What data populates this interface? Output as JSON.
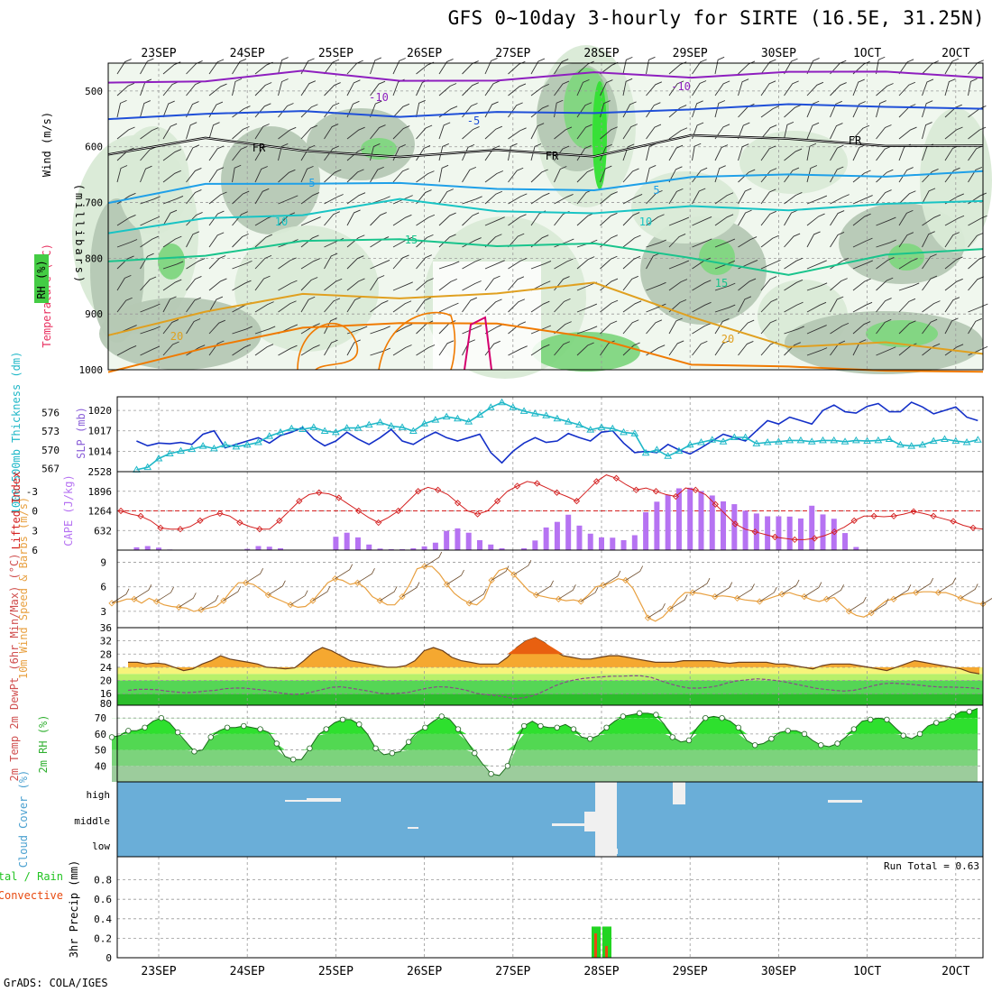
{
  "header": {
    "title": "GFS 0~10day 3-hourly for SIRTE (16.5E, 31.25N)"
  },
  "footer": {
    "credit": "GrADS: COLA/IGES"
  },
  "colors": {
    "rh_shade": [
      "#f0f7ee",
      "#d9ead6",
      "#b5c8b4",
      "#7fd67f",
      "#33e033"
    ],
    "temp": {
      "m10": "#8e1fbf",
      "m5": "#1f4fd8",
      "frz": "#000000",
      "p5": "#1fa0e8",
      "p10": "#18c4c4",
      "p15": "#19c48c",
      "p20": "#e0a020",
      "p25": "#f07a00",
      "p30": "#d4006e"
    },
    "slp": "#1430c8",
    "thickness": "#20b8c8",
    "lifted": "#d42020",
    "cape": "#b673f2",
    "wind10": "#e8a040",
    "cloud_bg": "#6aaed8",
    "precip_total": "#22d422",
    "precip_conv": "#e84a10"
  },
  "chart_data": [
    {
      "id": "upper-air",
      "type": "heatmap",
      "ylabel_wind": "Wind (m/s)",
      "ylabel_temp": "Temperature (°C)",
      "ylabel_rh": "RH (%)",
      "ylabel_p": "(millibars)",
      "x_dates": [
        "23SEP",
        "24SEP",
        "25SEP",
        "26SEP",
        "27SEP",
        "28SEP",
        "29SEP",
        "30SEP",
        "1OCT",
        "2OCT"
      ],
      "x_date_labels_printed": [
        "23SEP",
        "24SEP",
        "25SEP",
        "26SEP",
        "27SEP",
        "28SEP",
        "29SEP",
        "30SEP",
        "1OCT",
        "2OCT"
      ],
      "y_ticks": [
        500,
        600,
        700,
        800,
        900,
        1000
      ],
      "contour_labels": [
        "-10",
        "-5",
        "FR",
        "5",
        "10",
        "15",
        "20"
      ],
      "isotherms": [
        {
          "t": "-10",
          "p": [
            485,
            478,
            470,
            478,
            480,
            472,
            470,
            468,
            468,
            470
          ]
        },
        {
          "t": "-5",
          "p": [
            545,
            542,
            540,
            540,
            542,
            540,
            528,
            530,
            525,
            530
          ]
        },
        {
          "t": "FR",
          "p": [
            608,
            590,
            605,
            615,
            612,
            612,
            580,
            590,
            592,
            602
          ]
        },
        {
          "t": "5",
          "p": [
            700,
            672,
            660,
            668,
            678,
            672,
            660,
            648,
            650,
            650
          ]
        },
        {
          "t": "10",
          "p": [
            760,
            728,
            718,
            700,
            712,
            718,
            712,
            708,
            705,
            700
          ]
        },
        {
          "t": "15",
          "p": [
            812,
            790,
            770,
            770,
            772,
            778,
            800,
            825,
            800,
            780
          ]
        },
        {
          "t": "20",
          "p": [
            940,
            890,
            870,
            870,
            860,
            850,
            900,
            960,
            955,
            965
          ]
        },
        {
          "t": "25",
          "p": [
            1000,
            960,
            930,
            910,
            920,
            945,
            985,
            1000,
            1000,
            1000
          ]
        }
      ]
    },
    {
      "id": "slp-thickness",
      "type": "line",
      "ylabel_left": "1000-500mb Thickness (dm)",
      "ylabel_right": "SLP (mb)",
      "y_left_ticks": [
        567,
        570,
        573,
        576
      ],
      "y_right_ticks": [
        1014,
        1017,
        1020
      ],
      "x_start": "22SEP18Z",
      "x_step_hours": 3,
      "series": [
        {
          "name": "SLP (mb)",
          "values": [
            1015.5,
            1014.8,
            1015.2,
            1015.1,
            1015.3,
            1015.0,
            1016.5,
            1017.0,
            1014.5,
            1015.0,
            1015.5,
            1016.0,
            1015.2,
            1016.3,
            1016.8,
            1017.5,
            1015.8,
            1014.8,
            1015.5,
            1016.8,
            1015.8,
            1015.0,
            1016.0,
            1017.2,
            1015.5,
            1015.0,
            1016.0,
            1016.8,
            1016.0,
            1015.5,
            1016.0,
            1016.5,
            1013.8,
            1012.3,
            1014.0,
            1015.2,
            1016.0,
            1015.3,
            1015.5,
            1016.6,
            1016.0,
            1015.5,
            1016.8,
            1017.0,
            1015.2,
            1013.8,
            1014.0,
            1013.8,
            1015.0,
            1014.2,
            1013.6,
            1014.5,
            1015.5,
            1016.5,
            1016.0,
            1015.5,
            1017.0,
            1018.5,
            1018.0,
            1019.0,
            1018.5,
            1018.0,
            1020.0,
            1020.8,
            1019.8,
            1019.6,
            1020.6,
            1021.0,
            1019.8,
            1019.8,
            1021.2,
            1020.5,
            1019.5,
            1020.0,
            1020.5,
            1019.0,
            1018.5,
            1019.3,
            1018.0
          ]
        },
        {
          "name": "Thickness (dm)",
          "values": [
            566.8,
            567.2,
            568.6,
            569.4,
            569.8,
            570.1,
            570.6,
            570.2,
            570.8,
            570.5,
            570.8,
            571.2,
            572.2,
            572.8,
            573.4,
            573.3,
            573.6,
            573.0,
            572.8,
            573.5,
            573.5,
            574.0,
            574.4,
            573.8,
            573.6,
            573.0,
            574.2,
            574.8,
            575.3,
            575.0,
            574.5,
            575.6,
            576.8,
            577.6,
            576.8,
            576.2,
            575.8,
            575.5,
            575.0,
            574.5,
            574.0,
            573.2,
            573.6,
            573.4,
            572.8,
            572.6,
            569.5,
            570.0,
            569.0,
            569.8,
            570.8,
            571.2,
            571.6,
            571.3,
            572.0,
            572.0,
            571.0,
            571.2,
            571.3,
            571.5,
            571.5,
            571.3,
            571.5,
            571.5,
            571.3,
            571.5,
            571.4,
            571.5,
            571.7,
            570.8,
            570.6,
            570.8,
            571.4,
            571.7,
            571.4,
            571.2,
            571.6,
            571.4,
            571.6
          ]
        }
      ]
    },
    {
      "id": "stability",
      "type": "bar",
      "ylabel_left": "Lifted Index",
      "ylabel_right": "CAPE (J/kg)",
      "y_left_ticks": [
        "-3",
        "0",
        "3",
        "6"
      ],
      "y_right_ticks": [
        "632",
        "1264",
        "1896",
        "2528"
      ],
      "series": [
        {
          "name": "Lifted Index",
          "values": [
            0,
            0.5,
            0.8,
            1.5,
            2.6,
            2.8,
            2.8,
            2.4,
            1.5,
            0.8,
            0.4,
            0.8,
            1.8,
            2.4,
            2.8,
            2.8,
            1.5,
            0,
            -1.5,
            -2.5,
            -2.8,
            -2.6,
            -2,
            -1,
            0,
            1,
            1.8,
            1,
            0,
            -1.5,
            -3,
            -3.6,
            -3.2,
            -2.5,
            -1.2,
            0,
            0.5,
            0,
            -1.5,
            -3,
            -3.8,
            -4.5,
            -4.2,
            -3.5,
            -2.8,
            -2.2,
            -1.5,
            -3,
            -4.5,
            -5.5,
            -5,
            -4,
            -3.2,
            -3.5,
            -3,
            -2.5,
            -2.2,
            -3.5,
            -3.2,
            -2.5,
            -1,
            0.5,
            2,
            2.8,
            3.2,
            3.6,
            4,
            4.2,
            4.4,
            4.4,
            4.2,
            3.8,
            3.2,
            2.5,
            1.5,
            0.8,
            0.8,
            0.9,
            0.8,
            0.5,
            0.1,
            0.4,
            0.8,
            1.2,
            1.6,
            2.2,
            2.6,
            2.8
          ]
        },
        {
          "name": "CAPE (J/kg)",
          "values": [
            90,
            130,
            80,
            20,
            0,
            0,
            0,
            0,
            0,
            0,
            40,
            130,
            110,
            60,
            0,
            0,
            0,
            0,
            430,
            560,
            410,
            180,
            50,
            30,
            30,
            60,
            120,
            240,
            620,
            700,
            560,
            320,
            180,
            60,
            0,
            60,
            310,
            730,
            910,
            1140,
            790,
            530,
            410,
            400,
            320,
            480,
            1220,
            1560,
            1780,
            1990,
            2010,
            1900,
            1760,
            1570,
            1480,
            1270,
            1180,
            1090,
            1090,
            1080,
            1020,
            1430,
            1150,
            1010,
            550,
            100,
            0,
            0,
            0,
            0,
            0,
            0,
            0,
            0,
            0,
            0,
            0,
            0,
            0,
            0,
            0,
            0,
            0,
            0,
            0,
            0,
            0,
            0
          ]
        }
      ]
    },
    {
      "id": "wind10m",
      "type": "line",
      "ylabel": "10m Wind Speed & Barbs (m/s)",
      "y_ticks": [
        "3",
        "6",
        "9"
      ],
      "series": [
        {
          "name": "10m Wind Speed",
          "values": [
            4.0,
            4.2,
            4.5,
            4.5,
            4.0,
            4.6,
            4.2,
            3.8,
            3.6,
            3.5,
            3.4,
            3.0,
            3.2,
            3.4,
            3.6,
            4.3,
            5.5,
            6.5,
            6.5,
            6.3,
            5.7,
            5.0,
            4.6,
            4.2,
            3.8,
            3.5,
            3.6,
            4.3,
            5.4,
            6.5,
            7.0,
            6.8,
            6.3,
            6.5,
            5.9,
            4.8,
            4.3,
            3.8,
            3.8,
            4.8,
            6.3,
            8.2,
            8.5,
            8.5,
            7.6,
            6.3,
            5.2,
            4.5,
            4.0,
            3.8,
            4.6,
            6.8,
            8.0,
            8.3,
            7.5,
            6.5,
            5.5,
            5.0,
            4.8,
            4.6,
            4.5,
            4.3,
            4.4,
            4.2,
            5.0,
            6.0,
            6.2,
            6.5,
            7.0,
            6.8,
            5.8,
            4.0,
            2.2,
            1.8,
            2.3,
            3.3,
            4.5,
            5.3,
            5.3,
            5.2,
            5.0,
            4.8,
            4.9,
            4.8,
            4.6,
            4.4,
            4.3,
            4.2,
            4.5,
            4.8,
            5.1,
            5.3,
            5.0,
            4.8,
            4.4,
            4.2,
            4.5,
            4.7,
            3.8,
            3.0,
            2.5,
            2.3,
            2.8,
            3.6,
            4.3,
            4.5,
            5.0,
            5.2,
            5.3,
            5.4,
            5.4,
            5.3,
            5.3,
            5.0,
            4.6,
            4.3,
            4.0,
            3.9
          ]
        }
      ]
    },
    {
      "id": "temp2m",
      "type": "area",
      "ylabel": "2m Temp 2m DewPt (6hr Min/Max) (°C)",
      "y_ticks": [
        "16",
        "20",
        "24",
        "28",
        "32",
        "36"
      ],
      "series": [
        {
          "name": "2m Temp",
          "values": [
            25.5,
            25.5,
            25.0,
            25.3,
            25.0,
            24.0,
            23.0,
            23.5,
            25.0,
            26.0,
            27.5,
            26.5,
            26.0,
            25.5,
            25.0,
            24.0,
            23.8,
            23.5,
            23.8,
            26.0,
            28.5,
            30.0,
            29.0,
            27.5,
            26.0,
            25.5,
            25.0,
            24.5,
            24.0,
            24.0,
            24.5,
            26.0,
            29.0,
            30.0,
            29.0,
            27.0,
            26.0,
            25.5,
            25.0,
            25.0,
            25.0,
            27.0,
            30.0,
            32.0,
            33.0,
            31.5,
            29.0,
            27.5,
            27.0,
            26.5,
            26.5,
            27.0,
            27.5,
            27.5,
            27.0,
            26.5,
            26.0,
            25.5,
            25.5,
            25.5,
            26.0,
            26.0,
            26.0,
            26.0,
            25.5,
            25.2,
            25.5,
            25.5,
            25.5,
            25.5,
            25.0,
            25.0,
            24.5,
            24.0,
            23.5,
            24.5,
            25.0,
            25.0,
            25.0,
            24.5,
            24.0,
            23.5,
            23.0,
            24.0,
            25.0,
            26.0,
            25.5,
            25.0,
            24.5,
            24.0,
            23.5,
            22.5,
            22.0
          ]
        },
        {
          "name": "2m DewPt",
          "values": [
            17,
            17.3,
            17.3,
            17.2,
            16.8,
            16.5,
            16.3,
            16.5,
            16.8,
            17,
            17.5,
            17.7,
            17.7,
            17.4,
            17.1,
            16.6,
            16.1,
            15.8,
            15.9,
            16.5,
            17.2,
            17.9,
            18.1,
            17.7,
            17.2,
            16.7,
            16.1,
            16.0,
            16.1,
            16.4,
            17.1,
            17.7,
            18.1,
            18.0,
            17.6,
            17.0,
            16.1,
            15.7,
            15.5,
            15.0,
            14.5,
            14.8,
            15.5,
            16.8,
            18.2,
            19.3,
            20.1,
            20.6,
            20.9,
            21.1,
            21.3,
            21.3,
            21.4,
            21.4,
            21.0,
            20.0,
            19.0,
            18.2,
            17.7,
            17.7,
            17.9,
            18.4,
            19.3,
            19.9,
            20.2,
            20.5,
            20.3,
            20.0,
            19.5,
            18.9,
            18.3,
            17.7,
            17.3,
            17.0,
            16.8,
            17.0,
            17.6,
            18.4,
            19.0,
            19.2,
            19.0,
            18.8,
            18.5,
            18.2,
            18.0,
            18.0,
            17.9,
            17.8,
            17.5
          ]
        }
      ]
    },
    {
      "id": "rh2m",
      "type": "area",
      "ylabel": "2m RH (%)",
      "y_ticks": [
        "40",
        "50",
        "60",
        "70"
      ],
      "series": [
        {
          "name": "2m RH",
          "values": [
            58,
            59,
            62,
            62,
            64,
            68,
            70,
            67,
            61,
            55,
            49,
            50,
            58,
            62,
            64,
            64,
            65,
            64,
            63,
            61,
            54,
            46,
            44,
            44,
            51,
            59,
            63,
            67,
            69,
            69,
            66,
            60,
            51,
            47,
            48,
            49,
            55,
            61,
            64,
            68,
            71,
            69,
            63,
            56,
            48,
            41,
            35,
            34,
            40,
            54,
            65,
            68,
            65,
            64,
            64,
            66,
            63,
            58,
            57,
            59,
            64,
            68,
            71,
            72,
            73,
            73,
            72,
            66,
            58,
            55,
            56,
            64,
            70,
            71,
            70,
            68,
            64,
            56,
            53,
            54,
            57,
            61,
            62,
            62,
            60,
            56,
            53,
            52,
            54,
            58,
            63,
            68,
            69,
            70,
            69,
            64,
            59,
            57,
            60,
            65,
            67,
            68,
            71,
            74,
            74,
            76
          ]
        }
      ]
    },
    {
      "id": "cloud",
      "type": "area",
      "ylabel": "Cloud Cover (%)",
      "y_categories": [
        "high",
        "middle",
        "low"
      ]
    },
    {
      "id": "precip",
      "type": "bar",
      "ylabel_left": "3hr Precip (mm)",
      "ylabel_legend": "Total / Rain",
      "ylabel_conv": "Convective",
      "y_ticks": [
        "0",
        "0.2",
        "0.4",
        "0.6",
        "0.8"
      ],
      "annotation": "Run Total = 0.63",
      "bars": [
        {
          "x": "28SEP00Z",
          "total": 0.32,
          "conv": 0.25
        },
        {
          "x": "28SEP03Z",
          "total": 0.32,
          "conv": 0.12
        }
      ]
    }
  ]
}
